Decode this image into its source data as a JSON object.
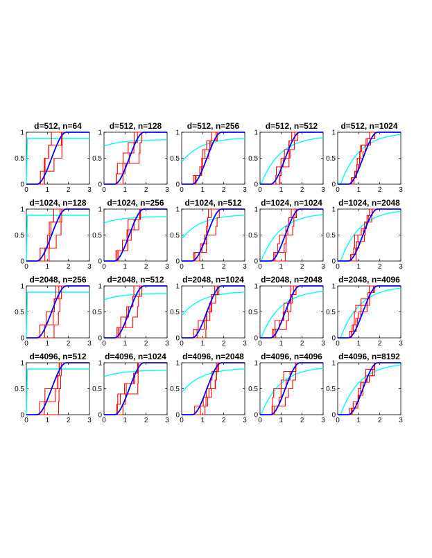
{
  "figure": {
    "type": "grid",
    "rows": 4,
    "cols": 5,
    "colors": {
      "model": "#0000ff",
      "empirical": "#ff0000",
      "reference": "#00ffff",
      "axes": "#000000"
    }
  },
  "chart_data": [
    {
      "type": "line",
      "title": "d=512, n=64",
      "xlim": [
        0,
        3
      ],
      "ylim": [
        0,
        1
      ],
      "xticks": [
        "0",
        "1",
        "2",
        "3"
      ],
      "yticks": [
        "0",
        "0.5",
        "1"
      ],
      "cyan_offset": 0.88,
      "cyan_scale": 0.0,
      "steps": 4
    },
    {
      "type": "line",
      "title": "d=512, n=128",
      "xlim": [
        0,
        3
      ],
      "ylim": [
        0,
        1
      ],
      "xticks": [
        "0",
        "1",
        "2",
        "3"
      ],
      "yticks": [
        "0",
        "0.5",
        "1"
      ],
      "cyan_offset": 0.74,
      "cyan_scale": 0.12,
      "steps": 5
    },
    {
      "type": "line",
      "title": "d=512, n=256",
      "xlim": [
        0,
        3
      ],
      "ylim": [
        0,
        1
      ],
      "xticks": [
        "0",
        "1",
        "2",
        "3"
      ],
      "yticks": [
        "0",
        "0.5",
        "1"
      ],
      "cyan_offset": 0.45,
      "cyan_scale": 0.45,
      "steps": 6
    },
    {
      "type": "line",
      "title": "d=512, n=512",
      "xlim": [
        0,
        3
      ],
      "ylim": [
        0,
        1
      ],
      "xticks": [
        "0",
        "1",
        "2",
        "3"
      ],
      "yticks": [
        "0",
        "0.5",
        "1"
      ],
      "cyan_offset": 0.0,
      "cyan_scale": 0.93,
      "steps": 6
    },
    {
      "type": "line",
      "title": "d=512, n=1024",
      "xlim": [
        0,
        3
      ],
      "ylim": [
        0,
        1
      ],
      "xticks": [
        "0",
        "1",
        "2",
        "3"
      ],
      "yticks": [
        "0",
        "0.5",
        "1"
      ],
      "cyan_offset": -0.1,
      "cyan_scale": 1.1,
      "steps": 8
    },
    {
      "type": "line",
      "title": "d=1024, n=128",
      "xlim": [
        0,
        3
      ],
      "ylim": [
        0,
        1
      ],
      "xticks": [
        "0",
        "1",
        "2",
        "3"
      ],
      "yticks": [
        "0",
        "0.5",
        "1"
      ],
      "cyan_offset": 0.88,
      "cyan_scale": 0.0,
      "steps": 4
    },
    {
      "type": "line",
      "title": "d=1024, n=256",
      "xlim": [
        0,
        3
      ],
      "ylim": [
        0,
        1
      ],
      "xticks": [
        "0",
        "1",
        "2",
        "3"
      ],
      "yticks": [
        "0",
        "0.5",
        "1"
      ],
      "cyan_offset": 0.74,
      "cyan_scale": 0.12,
      "steps": 5
    },
    {
      "type": "line",
      "title": "d=1024, n=512",
      "xlim": [
        0,
        3
      ],
      "ylim": [
        0,
        1
      ],
      "xticks": [
        "0",
        "1",
        "2",
        "3"
      ],
      "yticks": [
        "0",
        "0.5",
        "1"
      ],
      "cyan_offset": 0.45,
      "cyan_scale": 0.45,
      "steps": 6
    },
    {
      "type": "line",
      "title": "d=1024, n=1024",
      "xlim": [
        0,
        3
      ],
      "ylim": [
        0,
        1
      ],
      "xticks": [
        "0",
        "1",
        "2",
        "3"
      ],
      "yticks": [
        "0",
        "0.5",
        "1"
      ],
      "cyan_offset": 0.0,
      "cyan_scale": 0.93,
      "steps": 6
    },
    {
      "type": "line",
      "title": "d=1024, n=2048",
      "xlim": [
        0,
        3
      ],
      "ylim": [
        0,
        1
      ],
      "xticks": [
        "0",
        "1",
        "2",
        "3"
      ],
      "yticks": [
        "0",
        "0.5",
        "1"
      ],
      "cyan_offset": -0.1,
      "cyan_scale": 1.1,
      "steps": 8
    },
    {
      "type": "line",
      "title": "d=2048, n=256",
      "xlim": [
        0,
        3
      ],
      "ylim": [
        0,
        1
      ],
      "xticks": [
        "0",
        "1",
        "2",
        "3"
      ],
      "yticks": [
        "0",
        "0.5",
        "1"
      ],
      "cyan_offset": 0.88,
      "cyan_scale": 0.0,
      "steps": 4
    },
    {
      "type": "line",
      "title": "d=2048, n=512",
      "xlim": [
        0,
        3
      ],
      "ylim": [
        0,
        1
      ],
      "xticks": [
        "0",
        "1",
        "2",
        "3"
      ],
      "yticks": [
        "0",
        "0.5",
        "1"
      ],
      "cyan_offset": 0.74,
      "cyan_scale": 0.12,
      "steps": 5
    },
    {
      "type": "line",
      "title": "d=2048, n=1024",
      "xlim": [
        0,
        3
      ],
      "ylim": [
        0,
        1
      ],
      "xticks": [
        "0",
        "1",
        "2",
        "3"
      ],
      "yticks": [
        "0",
        "0.5",
        "1"
      ],
      "cyan_offset": 0.45,
      "cyan_scale": 0.45,
      "steps": 6
    },
    {
      "type": "line",
      "title": "d=2048, n=2048",
      "xlim": [
        0,
        3
      ],
      "ylim": [
        0,
        1
      ],
      "xticks": [
        "0",
        "1",
        "2",
        "3"
      ],
      "yticks": [
        "0",
        "0.5",
        "1"
      ],
      "cyan_offset": 0.0,
      "cyan_scale": 0.93,
      "steps": 6
    },
    {
      "type": "line",
      "title": "d=2048, n=4096",
      "xlim": [
        0,
        3
      ],
      "ylim": [
        0,
        1
      ],
      "xticks": [
        "0",
        "1",
        "2",
        "3"
      ],
      "yticks": [
        "0",
        "0.5",
        "1"
      ],
      "cyan_offset": -0.1,
      "cyan_scale": 1.1,
      "steps": 8
    },
    {
      "type": "line",
      "title": "d=4096, n=512",
      "xlim": [
        0,
        3
      ],
      "ylim": [
        0,
        1
      ],
      "xticks": [
        "0",
        "1",
        "2",
        "3"
      ],
      "yticks": [
        "0",
        "0.5",
        "1"
      ],
      "cyan_offset": 0.88,
      "cyan_scale": 0.0,
      "steps": 4
    },
    {
      "type": "line",
      "title": "d=4096, n=1024",
      "xlim": [
        0,
        3
      ],
      "ylim": [
        0,
        1
      ],
      "xticks": [
        "0",
        "1",
        "2",
        "3"
      ],
      "yticks": [
        "0",
        "0.5",
        "1"
      ],
      "cyan_offset": 0.74,
      "cyan_scale": 0.12,
      "steps": 5
    },
    {
      "type": "line",
      "title": "d=4096, n=2048",
      "xlim": [
        0,
        3
      ],
      "ylim": [
        0,
        1
      ],
      "xticks": [
        "0",
        "1",
        "2",
        "3"
      ],
      "yticks": [
        "0",
        "0.5",
        "1"
      ],
      "cyan_offset": 0.45,
      "cyan_scale": 0.45,
      "steps": 6
    },
    {
      "type": "line",
      "title": "d=4096, n=4096",
      "xlim": [
        0,
        3
      ],
      "ylim": [
        0,
        1
      ],
      "xticks": [
        "0",
        "1",
        "2",
        "3"
      ],
      "yticks": [
        "0",
        "0.5",
        "1"
      ],
      "cyan_offset": 0.0,
      "cyan_scale": 0.93,
      "steps": 6
    },
    {
      "type": "line",
      "title": "d=4096, n=8192",
      "xlim": [
        0,
        3
      ],
      "ylim": [
        0,
        1
      ],
      "xticks": [
        "0",
        "1",
        "2",
        "3"
      ],
      "yticks": [
        "0",
        "0.5",
        "1"
      ],
      "cyan_offset": -0.1,
      "cyan_scale": 1.1,
      "steps": 8
    }
  ]
}
